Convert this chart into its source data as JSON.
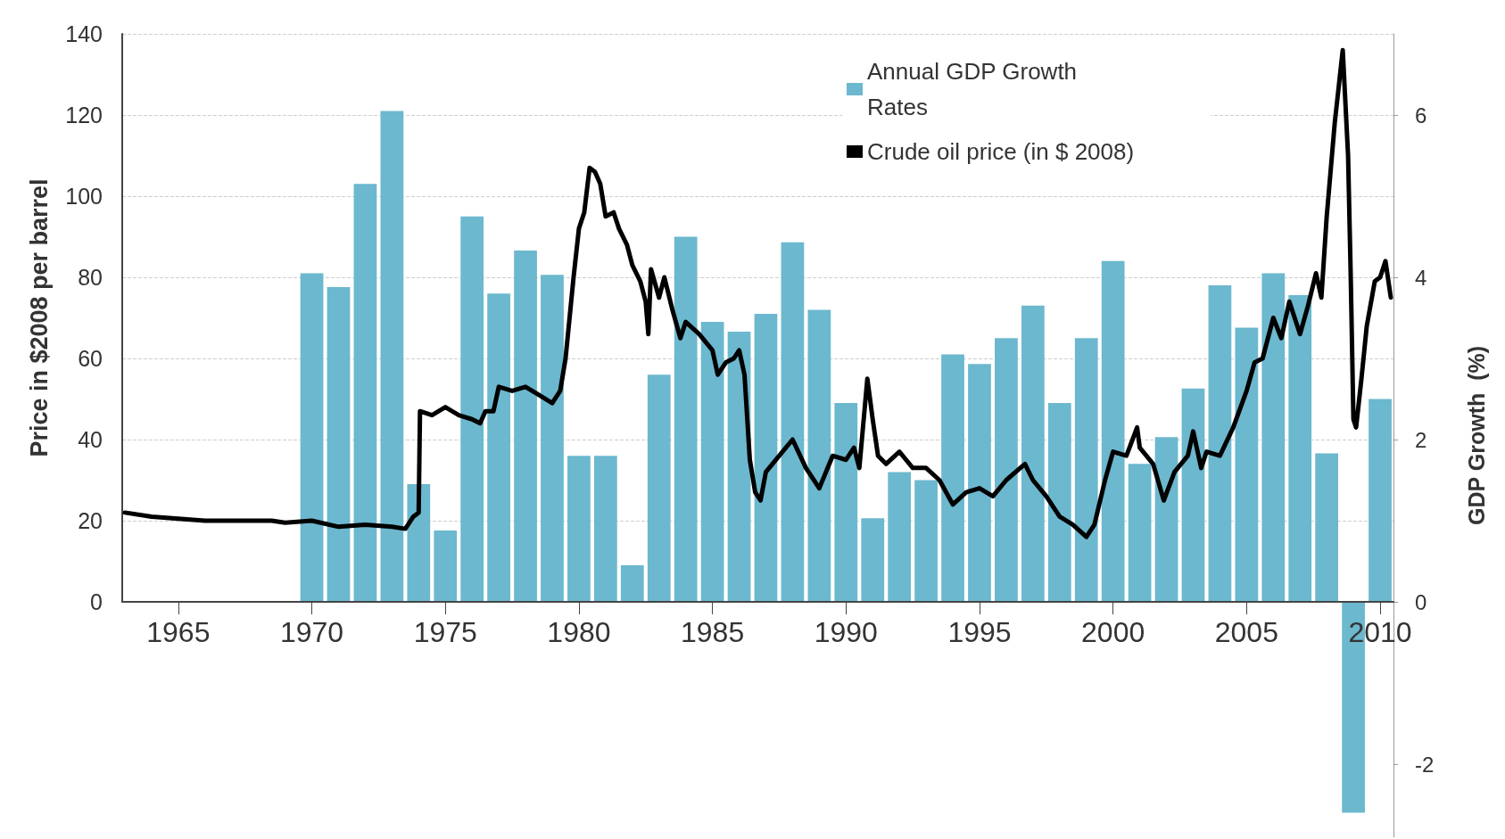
{
  "chart_data": {
    "type": "bar",
    "x": [
      1970,
      1971,
      1972,
      1973,
      1974,
      1975,
      1976,
      1977,
      1978,
      1979,
      1980,
      1981,
      1982,
      1983,
      1984,
      1985,
      1986,
      1987,
      1988,
      1989,
      1990,
      1991,
      1992,
      1993,
      1994,
      1995,
      1996,
      1997,
      1998,
      1999,
      2000,
      2001,
      2002,
      2003,
      2004,
      2005,
      2006,
      2007,
      2008,
      2009,
      2010
    ],
    "series": [
      {
        "name": "Annual GDP Growth Rates",
        "axis": "y2",
        "color": "#6cb8ce",
        "values": [
          4.05,
          3.88,
          5.15,
          6.05,
          1.45,
          0.88,
          4.75,
          3.8,
          4.33,
          4.03,
          1.8,
          1.8,
          0.45,
          2.8,
          4.5,
          3.45,
          3.33,
          3.55,
          4.43,
          3.6,
          2.45,
          1.03,
          1.6,
          1.5,
          3.05,
          2.93,
          3.25,
          3.65,
          2.45,
          3.25,
          4.2,
          1.7,
          2.03,
          2.63,
          3.9,
          3.38,
          4.05,
          3.78,
          1.83,
          -2.6,
          2.5
        ]
      },
      {
        "name": "Crude oil price (in $ 2008)",
        "type": "line",
        "color": "#000000",
        "x": [
          1963,
          1964,
          1966,
          1968.5,
          1969,
          1970,
          1971,
          1972,
          1973,
          1973.5,
          1973.8,
          1974,
          1974.05,
          1974.5,
          1975,
          1975.5,
          1976,
          1976.3,
          1976.5,
          1976.8,
          1977,
          1977.5,
          1978,
          1978.5,
          1979,
          1979.3,
          1979.5,
          1979.8,
          1980,
          1980.2,
          1980.4,
          1980.6,
          1980.8,
          1981,
          1981.3,
          1981.5,
          1981.8,
          1982,
          1982.3,
          1982.5,
          1982.6,
          1982.7,
          1983,
          1983.2,
          1983.5,
          1983.8,
          1984,
          1984.5,
          1985,
          1985.2,
          1985.5,
          1985.8,
          1986,
          1986.2,
          1986.4,
          1986.6,
          1986.8,
          1987,
          1987.5,
          1988,
          1988.5,
          1989,
          1989.5,
          1990,
          1990.3,
          1990.5,
          1990.8,
          1991,
          1991.2,
          1991.5,
          1992,
          1992.5,
          1993,
          1993.5,
          1994,
          1994.5,
          1995,
          1995.5,
          1996,
          1996.7,
          1997,
          1997.5,
          1998,
          1998.5,
          1999,
          1999.3,
          1999.7,
          2000,
          2000.5,
          2000.9,
          2001,
          2001.5,
          2001.9,
          2002.3,
          2002.8,
          2003,
          2003.3,
          2003.5,
          2004,
          2004.5,
          2005,
          2005.3,
          2005.6,
          2006,
          2006.3,
          2006.6,
          2007,
          2007.3,
          2007.6,
          2007.8,
          2008,
          2008.3,
          2008.5,
          2008.6,
          2008.8,
          2008.9,
          2009,
          2009.1,
          2009.3,
          2009.5,
          2009.8,
          2010,
          2010.2,
          2010.4
        ],
        "values": [
          22,
          21,
          20,
          20,
          19.5,
          20,
          18.5,
          19,
          18.5,
          18,
          21,
          22,
          47,
          46,
          48,
          46,
          45,
          44,
          47,
          47,
          53,
          52,
          53,
          51,
          49,
          52,
          60,
          80,
          92,
          96,
          107,
          106,
          103,
          95,
          96,
          92,
          88,
          83,
          79,
          74,
          66,
          82,
          75,
          80,
          72,
          65,
          69,
          66,
          62,
          56,
          59,
          60,
          62,
          56,
          35,
          27,
          25,
          32,
          36,
          40,
          33,
          28,
          36,
          35,
          38,
          33,
          55,
          45,
          36,
          34,
          37,
          33,
          33,
          30,
          24,
          27,
          28,
          26,
          30,
          34,
          30,
          26,
          21,
          19,
          16,
          19,
          30,
          37,
          36,
          43,
          38,
          34,
          25,
          32,
          36,
          42,
          33,
          37,
          36,
          43,
          52,
          59,
          60,
          70,
          65,
          74,
          66,
          73,
          81,
          75,
          95,
          118,
          130,
          136,
          110,
          80,
          45,
          43,
          55,
          68,
          79,
          80,
          84,
          75
        ]
      }
    ],
    "xlim": [
      1962.9,
      2010.5
    ],
    "xticks": [
      1965,
      1970,
      1975,
      1980,
      1985,
      1990,
      1995,
      2000,
      2005,
      2010
    ],
    "ylim": [
      0,
      140
    ],
    "yticks": [
      0,
      20,
      40,
      60,
      80,
      100,
      120,
      140
    ],
    "y2lim": [
      -2.9,
      7
    ],
    "y2ticks": [
      -2,
      0,
      2,
      4,
      6
    ],
    "ylabel": "Price in $2008 per barrel",
    "y2label": "GDP Growth  (%)",
    "grid": "y",
    "legend": "top right",
    "marker": "none"
  }
}
